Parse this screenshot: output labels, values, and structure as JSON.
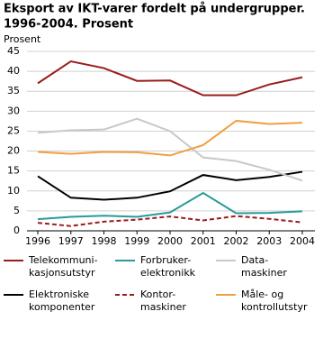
{
  "chart_data": {
    "type": "line",
    "title": "Eksport av IKT-varer fordelt på undergrupper.",
    "subtitle": "1996-2004. Prosent",
    "y_label": "Prosent",
    "categories": [
      "1996",
      "1997",
      "1998",
      "1999",
      "2000",
      "2001",
      "2002",
      "2003",
      "2004"
    ],
    "ylim": [
      0,
      45
    ],
    "yticks": [
      0,
      5,
      10,
      15,
      20,
      25,
      30,
      35,
      40,
      45
    ],
    "grid": true,
    "series": [
      {
        "name": "Telekommuni-\nkasjonsutstyr",
        "color": "#9b1c1c",
        "dashed": false,
        "values": [
          37,
          42.5,
          40.8,
          37.6,
          37.7,
          34,
          34,
          36.7,
          38.5
        ]
      },
      {
        "name": "Elektroniske\nkomponenter",
        "color": "#000000",
        "dashed": false,
        "values": [
          13.7,
          8.3,
          7.8,
          8.3,
          9.9,
          14,
          12.7,
          13.5,
          14.8
        ]
      },
      {
        "name": "Forbruker-\nelektronikk",
        "color": "#2a9a9a",
        "dashed": false,
        "values": [
          2.9,
          3.5,
          3.8,
          3.5,
          4.6,
          9.5,
          4.4,
          4.5,
          4.9
        ]
      },
      {
        "name": "Kontor-\nmaskiner",
        "color": "#9b1c1c",
        "dashed": true,
        "values": [
          2.0,
          1.2,
          2.3,
          2.8,
          3.6,
          2.6,
          3.7,
          3.0,
          2.1
        ]
      },
      {
        "name": "Data-\nmaskiner",
        "color": "#c8c8c8",
        "dashed": false,
        "values": [
          24.6,
          25.2,
          25.4,
          28.1,
          25,
          18.4,
          17.5,
          15.3,
          12.6
        ]
      },
      {
        "name": "Måle- og\nkontrollutstyr",
        "color": "#f0a040",
        "dashed": false,
        "values": [
          19.8,
          19.3,
          19.8,
          19.7,
          18.9,
          21.5,
          27.6,
          26.8,
          27.1
        ]
      }
    ]
  }
}
